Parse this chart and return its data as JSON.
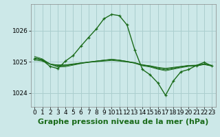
{
  "title": "Graphe pression niveau de la mer (hPa)",
  "bg_color": "#cce8e8",
  "grid_color": "#aacece",
  "line_color": "#1a6b1a",
  "yticks": [
    1024,
    1025,
    1026
  ],
  "ylim": [
    1023.55,
    1026.85
  ],
  "xlim": [
    -0.5,
    23.5
  ],
  "ref_lines": [
    [
      1025.05,
      1025.02,
      1024.92,
      1024.9,
      1024.9,
      1024.93,
      1024.96,
      1024.98,
      1025.0,
      1025.02,
      1025.04,
      1025.02,
      1024.99,
      1024.96,
      1024.9,
      1024.87,
      1024.82,
      1024.79,
      1024.82,
      1024.85,
      1024.88,
      1024.89,
      1024.92,
      1024.88
    ],
    [
      1025.1,
      1025.05,
      1024.93,
      1024.88,
      1024.88,
      1024.92,
      1024.96,
      1024.99,
      1025.02,
      1025.05,
      1025.07,
      1025.05,
      1025.01,
      1024.97,
      1024.9,
      1024.86,
      1024.8,
      1024.76,
      1024.8,
      1024.84,
      1024.88,
      1024.88,
      1024.93,
      1024.88
    ],
    [
      1025.13,
      1025.07,
      1024.93,
      1024.86,
      1024.87,
      1024.91,
      1024.95,
      1024.99,
      1025.02,
      1025.05,
      1025.08,
      1025.05,
      1025.01,
      1024.96,
      1024.89,
      1024.85,
      1024.78,
      1024.74,
      1024.78,
      1024.83,
      1024.87,
      1024.87,
      1024.92,
      1024.87
    ],
    [
      1025.17,
      1025.09,
      1024.92,
      1024.83,
      1024.84,
      1024.89,
      1024.94,
      1024.98,
      1025.01,
      1025.04,
      1025.07,
      1025.04,
      1025.0,
      1024.95,
      1024.87,
      1024.83,
      1024.76,
      1024.71,
      1024.76,
      1024.81,
      1024.85,
      1024.86,
      1024.91,
      1024.86
    ]
  ],
  "main_line": [
    1025.1,
    1025.05,
    1024.85,
    1024.78,
    1025.02,
    1025.2,
    1025.5,
    1025.78,
    1026.05,
    1026.38,
    1026.52,
    1026.48,
    1026.18,
    1025.38,
    1024.75,
    1024.58,
    1024.32,
    1023.92,
    1024.38,
    1024.68,
    1024.75,
    1024.88,
    1024.98,
    1024.87
  ],
  "xtick_labels": [
    "0",
    "1",
    "2",
    "3",
    "4",
    "5",
    "6",
    "7",
    "8",
    "9",
    "10",
    "11",
    "12",
    "13",
    "14",
    "15",
    "16",
    "17",
    "18",
    "19",
    "20",
    "21",
    "22",
    "23"
  ],
  "title_fontsize": 8,
  "tick_fontsize": 6.5
}
